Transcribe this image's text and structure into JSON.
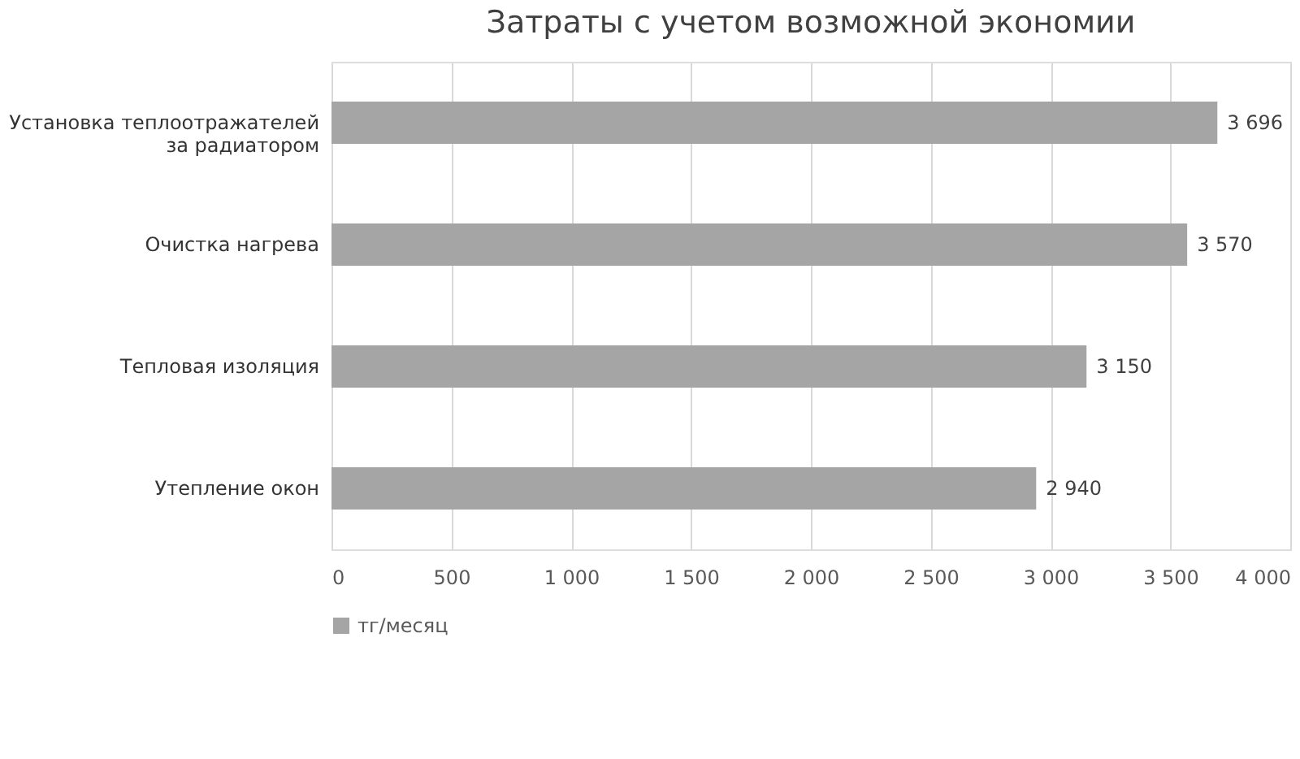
{
  "chart_data": {
    "type": "bar",
    "orientation": "horizontal",
    "title": "Затраты с учетом возможной экономии",
    "categories": [
      "Установка теплоотражателей за радиатором",
      "Очистка нагрева",
      "Тепловая изоляция",
      "Утепление окон"
    ],
    "series": [
      {
        "name": "тг/месяц",
        "color": "#a5a5a5",
        "values": [
          3696,
          3570,
          3150,
          2940
        ],
        "value_labels": [
          "3 696",
          "3 570",
          "3 150",
          "2 940"
        ]
      }
    ],
    "xlim": [
      0,
      4000
    ],
    "xticks": [
      0,
      500,
      {
        "value": 1000,
        "label": "1 000"
      },
      {
        "value": 1500,
        "label": "1 500"
      },
      {
        "value": 2000,
        "label": "2 000"
      },
      {
        "value": 2500,
        "label": "2 500"
      },
      {
        "value": 3000,
        "label": "3 000"
      },
      {
        "value": 3500,
        "label": "3 500"
      },
      {
        "value": 4000,
        "label": "4 000"
      }
    ],
    "grid": "x",
    "legend": "bottom"
  }
}
